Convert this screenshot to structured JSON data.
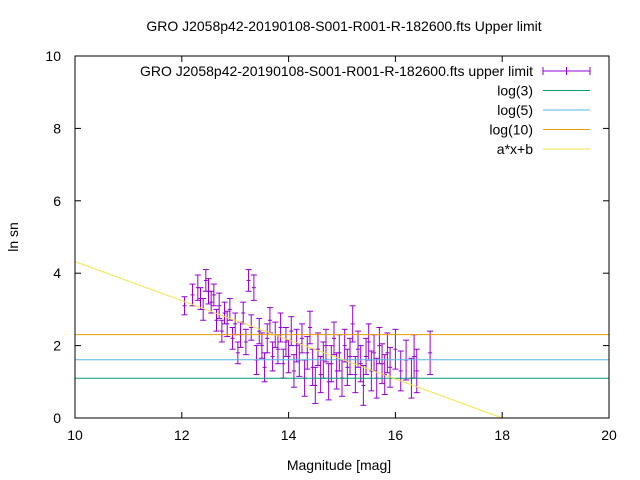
{
  "chart_data": {
    "type": "scatter",
    "title": "GRO J2058p42-20190108-S001-R001-R-182600.fts Upper limit",
    "xlabel": "Magnitude [mag]",
    "ylabel": "ln sn",
    "xlim": [
      10,
      20
    ],
    "ylim": [
      0,
      10
    ],
    "xticks": [
      "10",
      "12",
      "14",
      "16",
      "18",
      "20"
    ],
    "yticks": [
      "0",
      "2",
      "4",
      "6",
      "8",
      "10"
    ],
    "grid": false,
    "legend_position": "top-right",
    "colors": {
      "points": "#9400d3",
      "log3": "#009e73",
      "log5": "#56b4e9",
      "log10": "#e69f00",
      "fit": "#f0e442"
    },
    "series": [
      {
        "name": "GRO J2058p42-20190108-S001-R001-R-182600.fts upper limit",
        "kind": "errorbars",
        "points": [
          [
            12.05,
            3.1,
            0.25
          ],
          [
            12.2,
            3.4,
            0.3
          ],
          [
            12.3,
            3.6,
            0.35
          ],
          [
            12.35,
            3.3,
            0.3
          ],
          [
            12.4,
            3.0,
            0.3
          ],
          [
            12.45,
            3.8,
            0.3
          ],
          [
            12.5,
            3.5,
            0.35
          ],
          [
            12.55,
            3.2,
            0.3
          ],
          [
            12.6,
            3.4,
            0.3
          ],
          [
            12.65,
            2.7,
            0.3
          ],
          [
            12.7,
            3.1,
            0.35
          ],
          [
            12.75,
            2.4,
            0.3
          ],
          [
            12.8,
            2.9,
            0.3
          ],
          [
            12.85,
            2.6,
            0.35
          ],
          [
            12.9,
            3.0,
            0.3
          ],
          [
            12.95,
            2.2,
            0.3
          ],
          [
            13.0,
            2.6,
            0.3
          ],
          [
            13.05,
            1.8,
            0.3
          ],
          [
            13.1,
            2.3,
            0.35
          ],
          [
            13.15,
            2.9,
            0.3
          ],
          [
            13.2,
            2.1,
            0.35
          ],
          [
            13.25,
            3.8,
            0.3
          ],
          [
            13.3,
            2.5,
            0.35
          ],
          [
            13.35,
            3.6,
            0.35
          ],
          [
            13.4,
            1.6,
            0.4
          ],
          [
            13.45,
            2.4,
            0.35
          ],
          [
            13.5,
            2.0,
            0.35
          ],
          [
            13.55,
            1.4,
            0.4
          ],
          [
            13.6,
            2.2,
            0.4
          ],
          [
            13.65,
            2.7,
            0.35
          ],
          [
            13.7,
            1.7,
            0.4
          ],
          [
            13.75,
            2.3,
            0.35
          ],
          [
            13.8,
            1.9,
            0.4
          ],
          [
            13.85,
            2.5,
            0.4
          ],
          [
            13.9,
            1.5,
            0.4
          ],
          [
            13.95,
            2.1,
            0.4
          ],
          [
            14.0,
            1.7,
            0.45
          ],
          [
            14.05,
            2.4,
            0.4
          ],
          [
            14.1,
            1.3,
            0.45
          ],
          [
            14.15,
            2.0,
            0.45
          ],
          [
            14.2,
            1.6,
            0.45
          ],
          [
            14.25,
            2.2,
            0.4
          ],
          [
            14.3,
            1.1,
            0.5
          ],
          [
            14.35,
            1.8,
            0.45
          ],
          [
            14.4,
            2.5,
            0.45
          ],
          [
            14.45,
            1.4,
            0.5
          ],
          [
            14.5,
            0.9,
            0.5
          ],
          [
            14.55,
            1.9,
            0.45
          ],
          [
            14.6,
            1.2,
            0.5
          ],
          [
            14.65,
            1.6,
            0.5
          ],
          [
            14.7,
            2.0,
            0.45
          ],
          [
            14.75,
            1.0,
            0.5
          ],
          [
            14.8,
            1.5,
            0.5
          ],
          [
            14.85,
            2.2,
            0.45
          ],
          [
            14.9,
            1.3,
            0.5
          ],
          [
            14.95,
            1.8,
            0.5
          ],
          [
            15.0,
            1.1,
            0.5
          ],
          [
            15.05,
            2.0,
            0.45
          ],
          [
            15.1,
            1.4,
            0.5
          ],
          [
            15.15,
            1.7,
            0.5
          ],
          [
            15.2,
            2.6,
            0.5
          ],
          [
            15.25,
            1.2,
            0.5
          ],
          [
            15.3,
            1.9,
            0.5
          ],
          [
            15.35,
            1.5,
            0.5
          ],
          [
            15.4,
            0.9,
            0.55
          ],
          [
            15.45,
            1.7,
            0.5
          ],
          [
            15.5,
            2.1,
            0.5
          ],
          [
            15.55,
            1.3,
            0.55
          ],
          [
            15.6,
            1.8,
            0.5
          ],
          [
            15.65,
            1.1,
            0.55
          ],
          [
            15.7,
            2.0,
            0.5
          ],
          [
            15.75,
            1.5,
            0.55
          ],
          [
            15.8,
            1.2,
            0.55
          ],
          [
            15.85,
            1.8,
            0.55
          ],
          [
            15.9,
            1.4,
            0.55
          ],
          [
            16.0,
            1.9,
            0.55
          ],
          [
            16.1,
            1.3,
            0.55
          ],
          [
            16.2,
            1.6,
            0.55
          ],
          [
            16.3,
            1.1,
            0.55
          ],
          [
            16.35,
            1.7,
            0.6
          ],
          [
            16.4,
            1.3,
            0.6
          ],
          [
            16.65,
            1.8,
            0.6
          ]
        ]
      },
      {
        "name": "log(3)",
        "kind": "hline",
        "y": 1.0986
      },
      {
        "name": "log(5)",
        "kind": "hline",
        "y": 1.6094
      },
      {
        "name": "log(10)",
        "kind": "hline",
        "y": 2.3026
      },
      {
        "name": "a*x+b",
        "kind": "fit",
        "slope": -0.54,
        "intercept": 9.72
      }
    ]
  }
}
